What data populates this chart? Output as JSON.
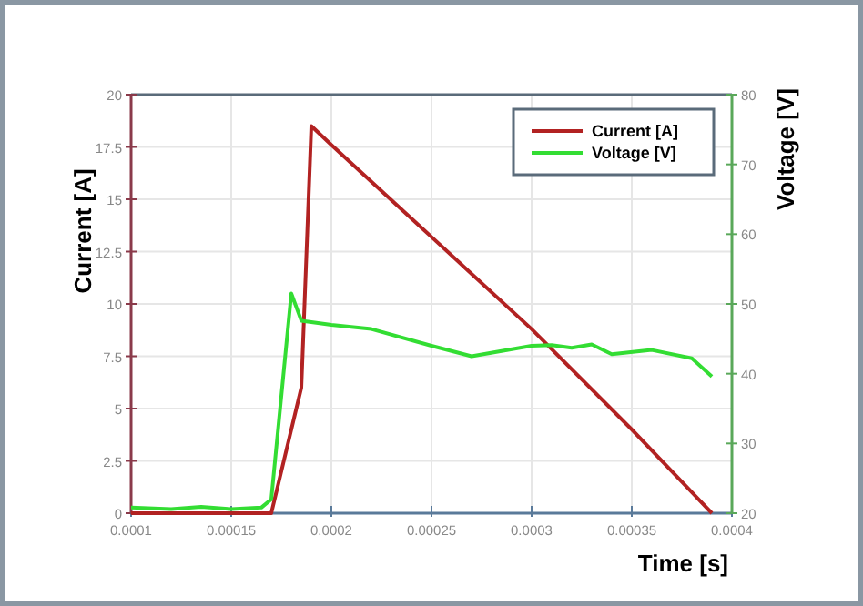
{
  "chart_data": {
    "type": "line",
    "xlabel": "Time [s]",
    "ylabel": "Current [A]",
    "y2label": "Voltage [V]",
    "xlim": [
      0.0001,
      0.0004
    ],
    "xticks": [
      0.0001,
      0.00015,
      0.0002,
      0.00025,
      0.0003,
      0.00035,
      0.0004
    ],
    "ylim": [
      0,
      20
    ],
    "yticks": [
      0,
      2.5,
      5,
      7.5,
      10,
      12.5,
      15,
      17.5,
      20
    ],
    "y2lim": [
      20,
      80
    ],
    "y2ticks": [
      20,
      30,
      40,
      50,
      60,
      70,
      80
    ],
    "grid": true,
    "legend": "top right",
    "marker": "none",
    "line_style": "solid",
    "series": [
      {
        "name": "Current [A]",
        "color": "#b22222",
        "x": [
          0.0001,
          0.00017,
          0.000185,
          0.00019,
          0.0002,
          0.00025,
          0.0003,
          0.00035,
          0.00039
        ],
        "values": [
          0,
          0,
          6,
          18.5,
          17.6,
          13.2,
          8.8,
          4.0,
          0
        ]
      },
      {
        "name": "Voltage [V]",
        "color": "#33dd33",
        "axis": "y2",
        "x": [
          0.0001,
          0.00012,
          0.000135,
          0.00015,
          0.000165,
          0.00017,
          0.00018,
          0.000185,
          0.0002,
          0.00022,
          0.00025,
          0.00027,
          0.0003,
          0.00031,
          0.00032,
          0.00033,
          0.00034,
          0.00036,
          0.00038,
          0.00039
        ],
        "values": [
          20.8,
          20.6,
          20.9,
          20.6,
          20.8,
          22,
          51.5,
          47.6,
          47,
          46.4,
          44,
          42.5,
          44,
          44.1,
          43.7,
          44.2,
          42.8,
          43.4,
          42.2,
          39.6
        ]
      }
    ]
  }
}
